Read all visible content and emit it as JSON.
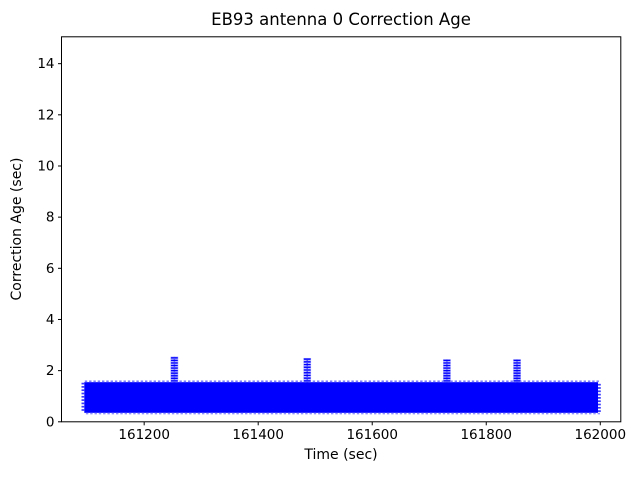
{
  "chart_data": {
    "type": "scatter",
    "title": "EB93 antenna 0 Correction Age",
    "xlabel": "Time (sec)",
    "ylabel": "Correction Age (sec)",
    "marker": "star",
    "marker_color": "#0000ff",
    "background_color": "#ffffff",
    "grid": false,
    "legend": null,
    "xlim": [
      161055,
      162036
    ],
    "ylim": [
      0,
      15.05
    ],
    "xticks": [
      161200,
      161400,
      161600,
      161800,
      162000
    ],
    "yticks": [
      0,
      2,
      4,
      6,
      8,
      10,
      12,
      14
    ],
    "band": {
      "note": "dense ~1 Hz correction-age samples overplotted into a solid band",
      "x_start": 161095,
      "x_end": 161996,
      "y_min": 0.35,
      "y_max": 1.55
    },
    "spikes": [
      {
        "x": 161253,
        "y_top": 2.5
      },
      {
        "x": 161486,
        "y_top": 2.45
      },
      {
        "x": 161731,
        "y_top": 2.4
      },
      {
        "x": 161854,
        "y_top": 2.4
      }
    ]
  }
}
